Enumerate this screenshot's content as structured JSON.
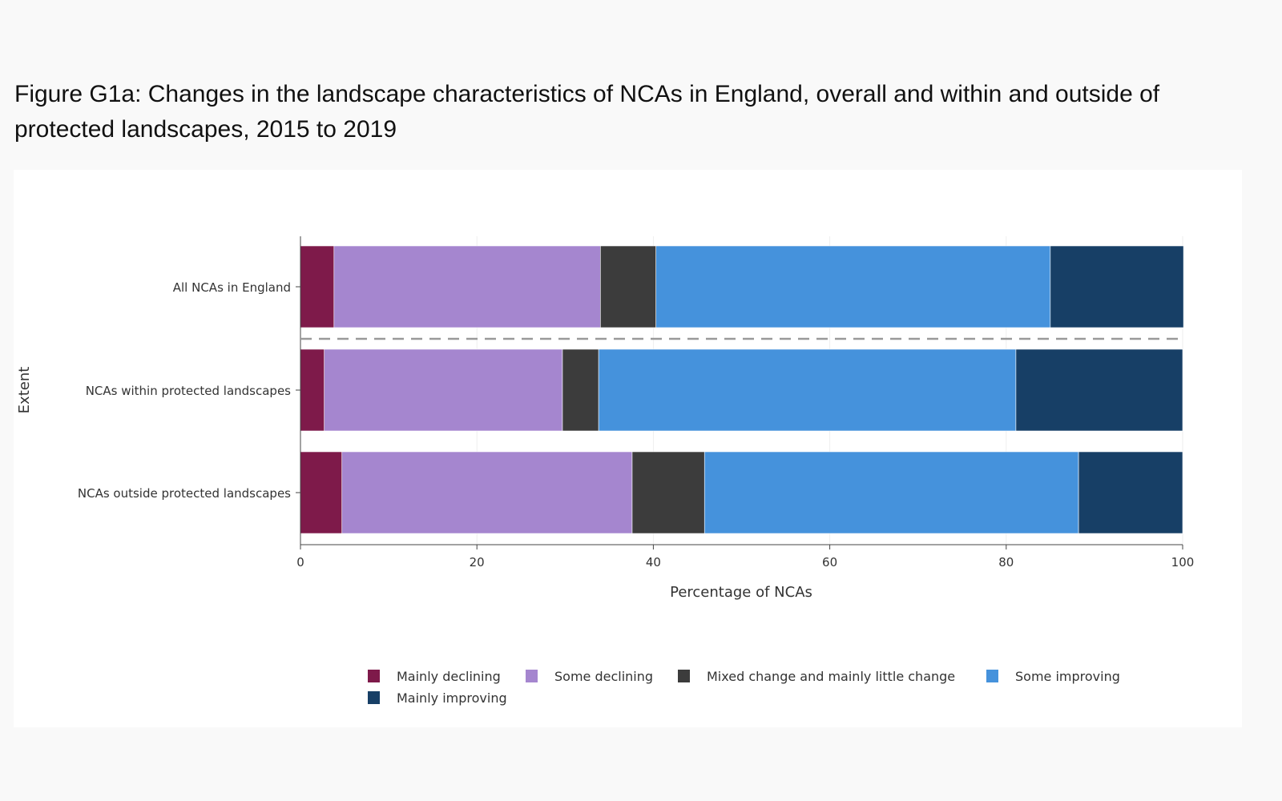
{
  "title": "Figure G1a: Changes in the landscape characteristics of NCAs in England, overall and within and outside of protected landscapes, 2015 to 2019",
  "chart_data": {
    "type": "bar",
    "orientation": "horizontal",
    "stacked": true,
    "categories": [
      "All NCAs in England",
      "NCAs within protected landscapes",
      "NCAs outside protected landscapes"
    ],
    "series": [
      {
        "name": "Mainly declining",
        "color": "#7e1a4a",
        "values": [
          3.8,
          2.7,
          4.7
        ]
      },
      {
        "name": "Some declining",
        "color": "#a586cf",
        "values": [
          30.2,
          27.0,
          32.9
        ]
      },
      {
        "name": "Mixed change and mainly little change",
        "color": "#3c3c3c",
        "values": [
          6.3,
          4.1,
          8.2
        ]
      },
      {
        "name": "Some improving",
        "color": "#4592dc",
        "values": [
          44.7,
          47.3,
          42.4
        ]
      },
      {
        "name": "Mainly improving",
        "color": "#173f66",
        "values": [
          15.1,
          18.9,
          11.8
        ]
      }
    ],
    "xlabel": "Percentage of NCAs",
    "ylabel": "Extent",
    "xlim": [
      0,
      100
    ],
    "xticks": [
      0,
      20,
      40,
      60,
      80,
      100
    ],
    "grid": true,
    "separator": "dashed line between first and second category",
    "legend_position": "bottom"
  }
}
